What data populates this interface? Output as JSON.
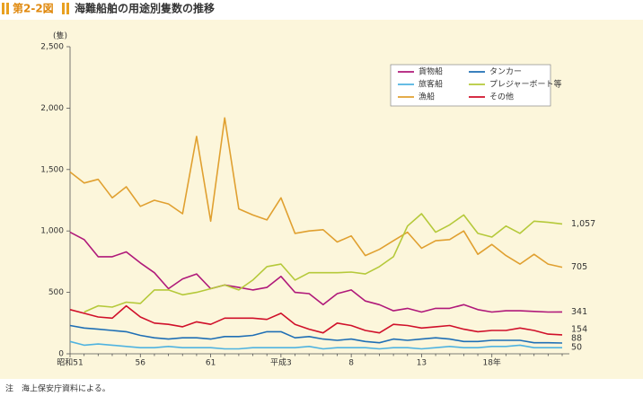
{
  "chart_data": {
    "type": "line",
    "label": "第2-2図",
    "title": "海難船舶の用途別隻数の推移",
    "ylabel": "(隻)",
    "note": "注　海上保安庁資料による。",
    "categories": [
      "昭和51",
      null,
      null,
      null,
      null,
      "56",
      null,
      null,
      null,
      null,
      "61",
      null,
      null,
      null,
      null,
      "平成3",
      null,
      null,
      null,
      null,
      "8",
      null,
      null,
      null,
      null,
      "13",
      null,
      null,
      null,
      null,
      "18年",
      null,
      null,
      null,
      null,
      null
    ],
    "ylim": [
      0,
      2500
    ],
    "yticks": [
      0,
      500,
      {
        "value": 1000,
        "label": "1,000"
      },
      {
        "value": 1500,
        "label": "1,500"
      },
      {
        "value": 2000,
        "label": "2,000"
      },
      {
        "value": 2500,
        "label": "2,500"
      }
    ],
    "grid": false,
    "legend": "upper-right",
    "series": [
      {
        "name": "貨物船",
        "color": "#b0197a",
        "values": [
          990,
          930,
          790,
          790,
          830,
          740,
          660,
          530,
          610,
          650,
          530,
          560,
          540,
          520,
          540,
          630,
          500,
          490,
          400,
          490,
          520,
          430,
          400,
          350,
          370,
          340,
          370,
          370,
          400,
          360,
          340,
          350,
          350,
          345,
          340,
          341
        ],
        "value_labels": [
          null,
          null,
          null,
          null,
          null,
          null,
          null,
          null,
          null,
          null,
          null,
          null,
          null,
          null,
          null,
          null,
          null,
          null,
          null,
          null,
          null,
          null,
          null,
          null,
          null,
          null,
          null,
          null,
          null,
          null,
          null,
          null,
          null,
          null,
          null,
          "341"
        ]
      },
      {
        "name": "旅客船",
        "color": "#4fb3e0",
        "values": [
          100,
          70,
          80,
          70,
          60,
          50,
          50,
          60,
          50,
          50,
          50,
          40,
          40,
          50,
          50,
          50,
          50,
          60,
          40,
          50,
          50,
          50,
          40,
          50,
          50,
          40,
          50,
          60,
          50,
          50,
          60,
          60,
          70,
          50,
          50,
          50
        ],
        "value_labels": [
          null,
          null,
          null,
          null,
          null,
          null,
          null,
          null,
          null,
          null,
          null,
          null,
          null,
          null,
          null,
          null,
          null,
          null,
          null,
          null,
          null,
          null,
          null,
          null,
          null,
          null,
          null,
          null,
          null,
          null,
          null,
          null,
          null,
          null,
          null,
          "50"
        ]
      },
      {
        "name": "漁船",
        "color": "#e0a030",
        "values": [
          1480,
          1390,
          1420,
          1270,
          1360,
          1200,
          1250,
          1220,
          1140,
          1770,
          1080,
          1920,
          1180,
          1130,
          1090,
          1270,
          980,
          1000,
          1010,
          910,
          960,
          800,
          850,
          920,
          990,
          860,
          920,
          930,
          1000,
          810,
          890,
          800,
          730,
          810,
          730,
          705
        ],
        "value_labels": [
          null,
          null,
          null,
          null,
          null,
          null,
          null,
          null,
          null,
          null,
          null,
          null,
          null,
          null,
          null,
          null,
          null,
          null,
          null,
          null,
          null,
          null,
          null,
          null,
          null,
          null,
          null,
          null,
          null,
          null,
          null,
          null,
          null,
          null,
          null,
          "705"
        ]
      },
      {
        "name": "タンカー",
        "color": "#1f6fb5",
        "values": [
          230,
          210,
          200,
          190,
          180,
          150,
          130,
          120,
          130,
          130,
          120,
          140,
          140,
          150,
          180,
          180,
          130,
          140,
          120,
          110,
          120,
          100,
          90,
          120,
          110,
          120,
          130,
          120,
          100,
          100,
          110,
          110,
          110,
          90,
          90,
          88
        ],
        "value_labels": [
          null,
          null,
          null,
          null,
          null,
          null,
          null,
          null,
          null,
          null,
          null,
          null,
          null,
          null,
          null,
          null,
          null,
          null,
          null,
          null,
          null,
          null,
          null,
          null,
          null,
          null,
          null,
          null,
          null,
          null,
          null,
          null,
          null,
          null,
          null,
          "88"
        ]
      },
      {
        "name": "プレジャーボート等",
        "color": "#b5c93a",
        "values": [
          null,
          340,
          390,
          380,
          420,
          410,
          520,
          520,
          480,
          500,
          530,
          560,
          520,
          600,
          710,
          730,
          600,
          660,
          660,
          660,
          665,
          650,
          710,
          790,
          1040,
          1140,
          990,
          1050,
          1130,
          980,
          950,
          1040,
          980,
          1080,
          1070,
          1057
        ],
        "value_labels": [
          null,
          null,
          null,
          null,
          null,
          null,
          null,
          null,
          null,
          null,
          null,
          null,
          null,
          null,
          null,
          null,
          null,
          null,
          null,
          null,
          null,
          null,
          null,
          null,
          null,
          null,
          null,
          null,
          null,
          null,
          null,
          null,
          null,
          null,
          null,
          "1,057"
        ]
      },
      {
        "name": "その他",
        "color": "#d0102a",
        "values": [
          360,
          330,
          300,
          290,
          390,
          300,
          250,
          240,
          220,
          260,
          240,
          290,
          290,
          290,
          280,
          330,
          240,
          200,
          170,
          250,
          230,
          190,
          170,
          240,
          230,
          210,
          220,
          230,
          200,
          180,
          190,
          190,
          210,
          190,
          160,
          154
        ],
        "value_labels": [
          null,
          null,
          null,
          null,
          null,
          null,
          null,
          null,
          null,
          null,
          null,
          null,
          null,
          null,
          null,
          null,
          null,
          null,
          null,
          null,
          null,
          null,
          null,
          null,
          null,
          null,
          null,
          null,
          null,
          null,
          null,
          null,
          null,
          null,
          null,
          "154"
        ]
      }
    ]
  }
}
